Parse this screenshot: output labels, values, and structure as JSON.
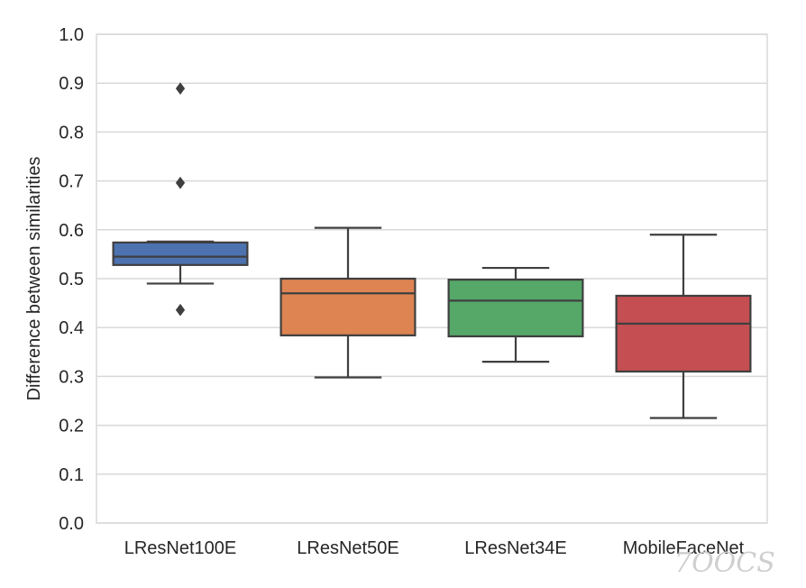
{
  "chart_data": {
    "type": "box",
    "xlabel": "",
    "ylabel": "Difference between similarities",
    "ylim": [
      0.0,
      1.0
    ],
    "yticks": [
      "0.0",
      "0.1",
      "0.2",
      "0.3",
      "0.4",
      "0.5",
      "0.6",
      "0.7",
      "0.8",
      "0.9",
      "1.0"
    ],
    "grid": true,
    "categories": [
      "LResNet100E",
      "LResNet50E",
      "LResNet34E",
      "MobileFaceNet"
    ],
    "boxes": [
      {
        "name": "LResNet100E",
        "color": "#4c72b0",
        "whisker_low": 0.49,
        "q1": 0.528,
        "median": 0.545,
        "q3": 0.574,
        "whisker_high": 0.576,
        "outliers": [
          0.436,
          0.696,
          0.889
        ]
      },
      {
        "name": "LResNet50E",
        "color": "#dd8452",
        "whisker_low": 0.298,
        "q1": 0.384,
        "median": 0.47,
        "q3": 0.5,
        "whisker_high": 0.604,
        "outliers": []
      },
      {
        "name": "LResNet34E",
        "color": "#55a868",
        "whisker_low": 0.33,
        "q1": 0.382,
        "median": 0.455,
        "q3": 0.498,
        "whisker_high": 0.522,
        "outliers": []
      },
      {
        "name": "MobileFaceNet",
        "color": "#c44e52",
        "whisker_low": 0.215,
        "q1": 0.31,
        "median": 0.408,
        "q3": 0.465,
        "whisker_high": 0.59,
        "outliers": []
      }
    ],
    "line_color": "#3f3f3f",
    "grid_color": "#d9d9d9",
    "watermark": "7OOCS"
  }
}
